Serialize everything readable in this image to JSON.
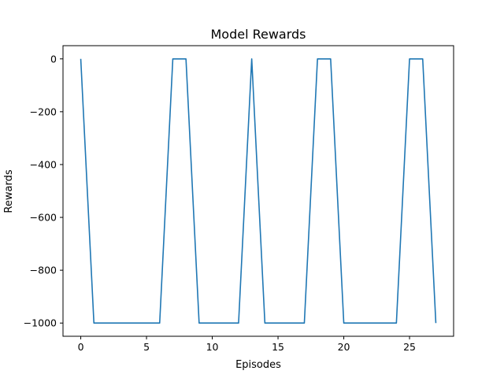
{
  "chart_data": {
    "type": "line",
    "title": "Model Rewards",
    "xlabel": "Episodes",
    "ylabel": "Rewards",
    "xlim": [
      -1.35,
      28.35
    ],
    "ylim": [
      -1050,
      50
    ],
    "x_ticks": [
      0,
      5,
      10,
      15,
      20,
      25
    ],
    "y_ticks": [
      0,
      -200,
      -400,
      -600,
      -800,
      -1000
    ],
    "grid": false,
    "legend": "none",
    "series": [
      {
        "color": "#1f77b4",
        "x": [
          0,
          1,
          2,
          3,
          4,
          5,
          6,
          7,
          8,
          9,
          10,
          11,
          12,
          13,
          14,
          15,
          16,
          17,
          18,
          19,
          20,
          21,
          22,
          23,
          24,
          25,
          26,
          27
        ],
        "values": [
          0,
          -1000,
          -1000,
          -1000,
          -1000,
          -1000,
          -1000,
          0,
          0,
          -1000,
          -1000,
          -1000,
          -1000,
          0,
          -1000,
          -1000,
          -1000,
          -1000,
          0,
          0,
          -1000,
          -1000,
          -1000,
          -1000,
          -1000,
          0,
          0,
          -1000
        ]
      }
    ]
  }
}
